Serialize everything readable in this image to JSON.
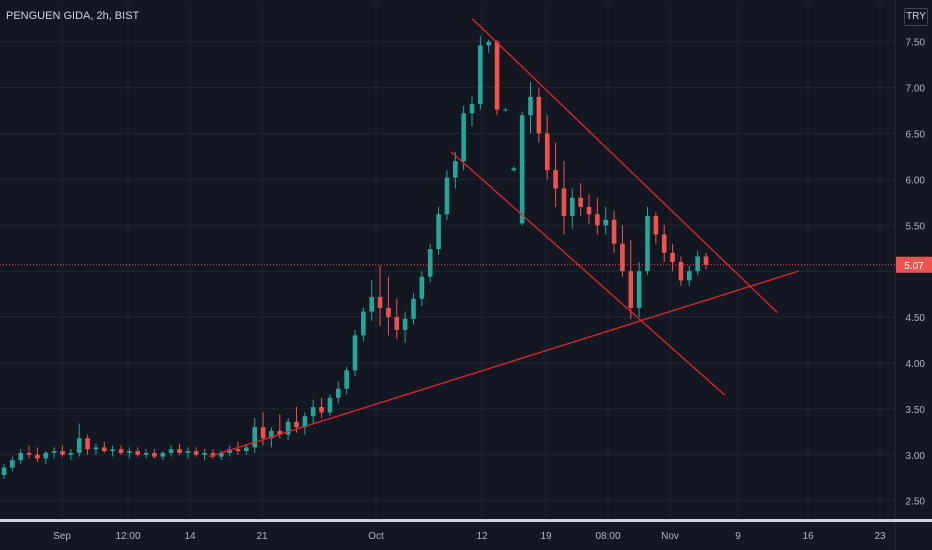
{
  "header": {
    "symbol_title": "PENGUEN GIDA, 2h, BIST",
    "currency_button": "TRY"
  },
  "price_axis": {
    "current_price_label": "5.07"
  },
  "colors": {
    "background": "#131722",
    "up": "#26a69a",
    "down": "#ef5350",
    "trendline": "#e0262b",
    "grid": "#1f2430",
    "axis_text": "#b2b5be"
  },
  "chart_data": {
    "type": "candlestick",
    "title": "",
    "xlabel": "",
    "ylabel": "",
    "ylim": [
      2.3,
      7.9
    ],
    "y_ticks": [
      2.5,
      3.0,
      3.5,
      4.0,
      4.5,
      5.0,
      5.5,
      6.0,
      6.5,
      7.0,
      7.5
    ],
    "y_tick_labels": [
      "2.50",
      "3.00",
      "3.50",
      "4.00",
      "4.50",
      "",
      "5.50",
      "6.00",
      "6.50",
      "7.00",
      "7.50"
    ],
    "x_tick_labels": [
      "Sep",
      "12:00",
      "14",
      "21",
      "Oct",
      "12",
      "19",
      "08:00",
      "Nov",
      "9",
      "16",
      "23"
    ],
    "current_price": 5.07,
    "series": [
      {
        "values": [
          [
            2.78,
            2.9,
            2.74,
            2.86
          ],
          [
            2.86,
            2.98,
            2.82,
            2.94
          ],
          [
            2.94,
            3.06,
            2.9,
            3.02
          ],
          [
            3.02,
            3.1,
            2.96,
            3.0
          ],
          [
            3.0,
            3.08,
            2.92,
            2.96
          ],
          [
            2.96,
            3.04,
            2.9,
            3.02
          ],
          [
            3.02,
            3.08,
            2.96,
            3.04
          ],
          [
            3.04,
            3.1,
            2.98,
            3.0
          ],
          [
            3.0,
            3.06,
            2.94,
            3.02
          ],
          [
            3.02,
            3.34,
            2.98,
            3.18
          ],
          [
            3.18,
            3.22,
            3.0,
            3.06
          ],
          [
            3.06,
            3.12,
            3.0,
            3.08
          ],
          [
            3.08,
            3.14,
            3.02,
            3.04
          ],
          [
            3.04,
            3.1,
            2.98,
            3.06
          ],
          [
            3.06,
            3.1,
            3.0,
            3.02
          ],
          [
            3.02,
            3.08,
            2.96,
            3.04
          ],
          [
            3.04,
            3.08,
            2.98,
            3.0
          ],
          [
            3.0,
            3.06,
            2.96,
            3.02
          ],
          [
            3.02,
            3.06,
            2.96,
            2.98
          ],
          [
            2.98,
            3.04,
            2.94,
            3.02
          ],
          [
            3.02,
            3.1,
            2.98,
            3.06
          ],
          [
            3.06,
            3.12,
            3.0,
            3.02
          ],
          [
            3.02,
            3.08,
            2.96,
            3.04
          ],
          [
            3.04,
            3.08,
            2.98,
            3.0
          ],
          [
            3.0,
            3.06,
            2.94,
            3.02
          ],
          [
            3.02,
            3.06,
            2.96,
            2.98
          ],
          [
            2.98,
            3.04,
            2.94,
            3.02
          ],
          [
            3.02,
            3.1,
            2.98,
            3.06
          ],
          [
            3.06,
            3.14,
            3.0,
            3.04
          ],
          [
            3.04,
            3.12,
            3.0,
            3.08
          ],
          [
            3.08,
            3.4,
            3.02,
            3.3
          ],
          [
            3.3,
            3.46,
            3.1,
            3.18
          ],
          [
            3.18,
            3.3,
            3.08,
            3.26
          ],
          [
            3.26,
            3.44,
            3.18,
            3.22
          ],
          [
            3.22,
            3.4,
            3.16,
            3.36
          ],
          [
            3.36,
            3.52,
            3.24,
            3.3
          ],
          [
            3.3,
            3.46,
            3.22,
            3.42
          ],
          [
            3.42,
            3.6,
            3.34,
            3.52
          ],
          [
            3.52,
            3.62,
            3.4,
            3.46
          ],
          [
            3.46,
            3.66,
            3.42,
            3.62
          ],
          [
            3.62,
            3.8,
            3.56,
            3.72
          ],
          [
            3.72,
            3.96,
            3.66,
            3.92
          ],
          [
            3.92,
            4.36,
            3.86,
            4.3
          ],
          [
            4.3,
            4.6,
            4.24,
            4.56
          ],
          [
            4.56,
            4.9,
            4.46,
            4.72
          ],
          [
            4.72,
            5.06,
            4.4,
            4.6
          ],
          [
            4.6,
            4.94,
            4.3,
            4.5
          ],
          [
            4.5,
            4.7,
            4.26,
            4.36
          ],
          [
            4.36,
            4.56,
            4.22,
            4.48
          ],
          [
            4.48,
            4.76,
            4.42,
            4.7
          ],
          [
            4.7,
            5.0,
            4.62,
            4.94
          ],
          [
            4.94,
            5.3,
            4.88,
            5.24
          ],
          [
            5.24,
            5.7,
            5.18,
            5.62
          ],
          [
            5.62,
            6.1,
            5.56,
            6.02
          ],
          [
            6.02,
            6.3,
            5.9,
            6.2
          ],
          [
            6.2,
            6.8,
            6.1,
            6.72
          ],
          [
            6.72,
            6.9,
            6.58,
            6.82
          ],
          [
            6.82,
            7.56,
            6.76,
            7.46
          ],
          [
            7.46,
            7.52,
            7.38,
            7.5
          ],
          [
            7.5,
            7.52,
            6.7,
            6.76
          ],
          [
            6.76,
            6.78,
            6.74,
            6.76
          ],
          [
            6.1,
            6.14,
            6.08,
            6.12
          ],
          [
            5.52,
            6.74,
            5.5,
            6.7
          ],
          [
            6.7,
            7.06,
            6.5,
            6.9
          ],
          [
            6.9,
            7.0,
            6.4,
            6.5
          ],
          [
            6.5,
            6.7,
            6.0,
            6.1
          ],
          [
            6.1,
            6.4,
            5.7,
            5.9
          ],
          [
            5.9,
            6.2,
            5.4,
            5.6
          ],
          [
            5.6,
            5.9,
            5.46,
            5.8
          ],
          [
            5.8,
            5.96,
            5.6,
            5.7
          ],
          [
            5.7,
            5.84,
            5.52,
            5.62
          ],
          [
            5.62,
            5.8,
            5.4,
            5.5
          ],
          [
            5.5,
            5.7,
            5.4,
            5.56
          ],
          [
            5.56,
            5.66,
            5.2,
            5.3
          ],
          [
            5.3,
            5.5,
            4.94,
            5.0
          ],
          [
            5.0,
            5.34,
            4.48,
            4.6
          ],
          [
            4.6,
            5.1,
            4.5,
            5.0
          ],
          [
            5.0,
            5.7,
            4.96,
            5.6
          ],
          [
            5.6,
            5.64,
            5.3,
            5.4
          ],
          [
            5.4,
            5.5,
            5.1,
            5.2
          ],
          [
            5.2,
            5.3,
            5.0,
            5.1
          ],
          [
            5.1,
            5.16,
            4.84,
            4.9
          ],
          [
            4.9,
            5.06,
            4.84,
            5.0
          ],
          [
            5.0,
            5.22,
            4.96,
            5.16
          ],
          [
            5.16,
            5.2,
            5.02,
            5.07
          ]
        ]
      }
    ],
    "trendlines": [
      {
        "points": [
          [
            "2023-09-15",
            2.98
          ],
          [
            "2023-11-10",
            5.0
          ]
        ]
      },
      {
        "points": [
          [
            "2023-10-10",
            7.75
          ],
          [
            "2023-11-08",
            4.55
          ]
        ]
      },
      {
        "points": [
          [
            "2023-10-08",
            6.3
          ],
          [
            "2023-11-03",
            3.65
          ]
        ]
      }
    ]
  }
}
